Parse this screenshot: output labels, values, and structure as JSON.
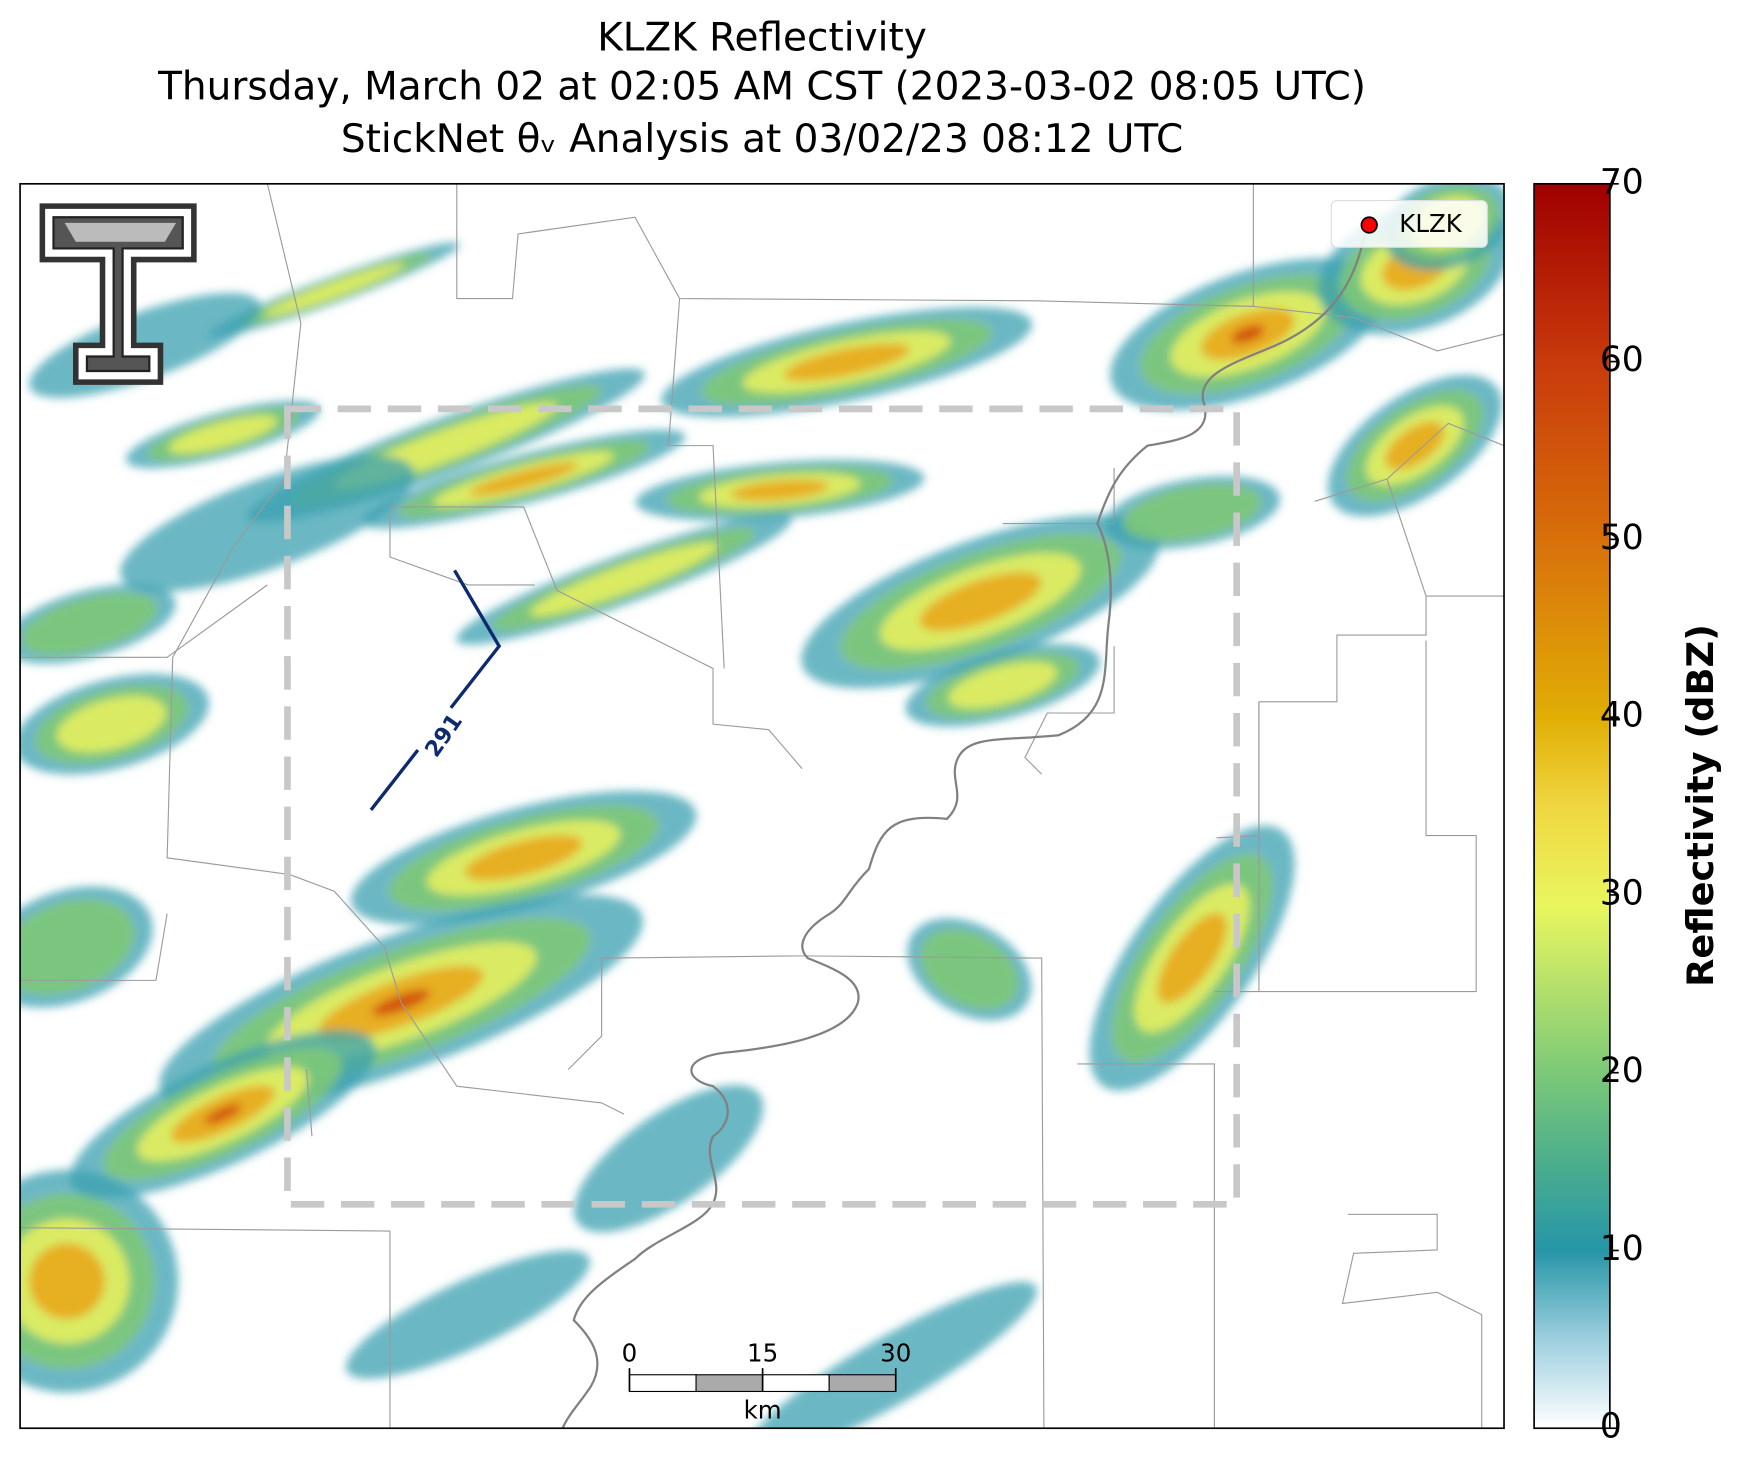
{
  "title_lines": [
    "KLZK Reflectivity",
    "Thursday, March 02 at 02:05 AM CST (2023-03-02 08:05 UTC)",
    "StickNet θᵥ Analysis at 03/02/23 08:12 UTC"
  ],
  "legend": {
    "label": "KLZK",
    "color": "#ff0000"
  },
  "contour_label": "291",
  "colorbar": {
    "label": "Reflectivity (dBZ)",
    "lim": [
      0,
      70
    ],
    "ticks": [
      0,
      10,
      20,
      30,
      40,
      50,
      60,
      70
    ]
  },
  "scalebar": {
    "ticks": [
      0,
      15,
      30
    ],
    "unit": "km"
  }
}
